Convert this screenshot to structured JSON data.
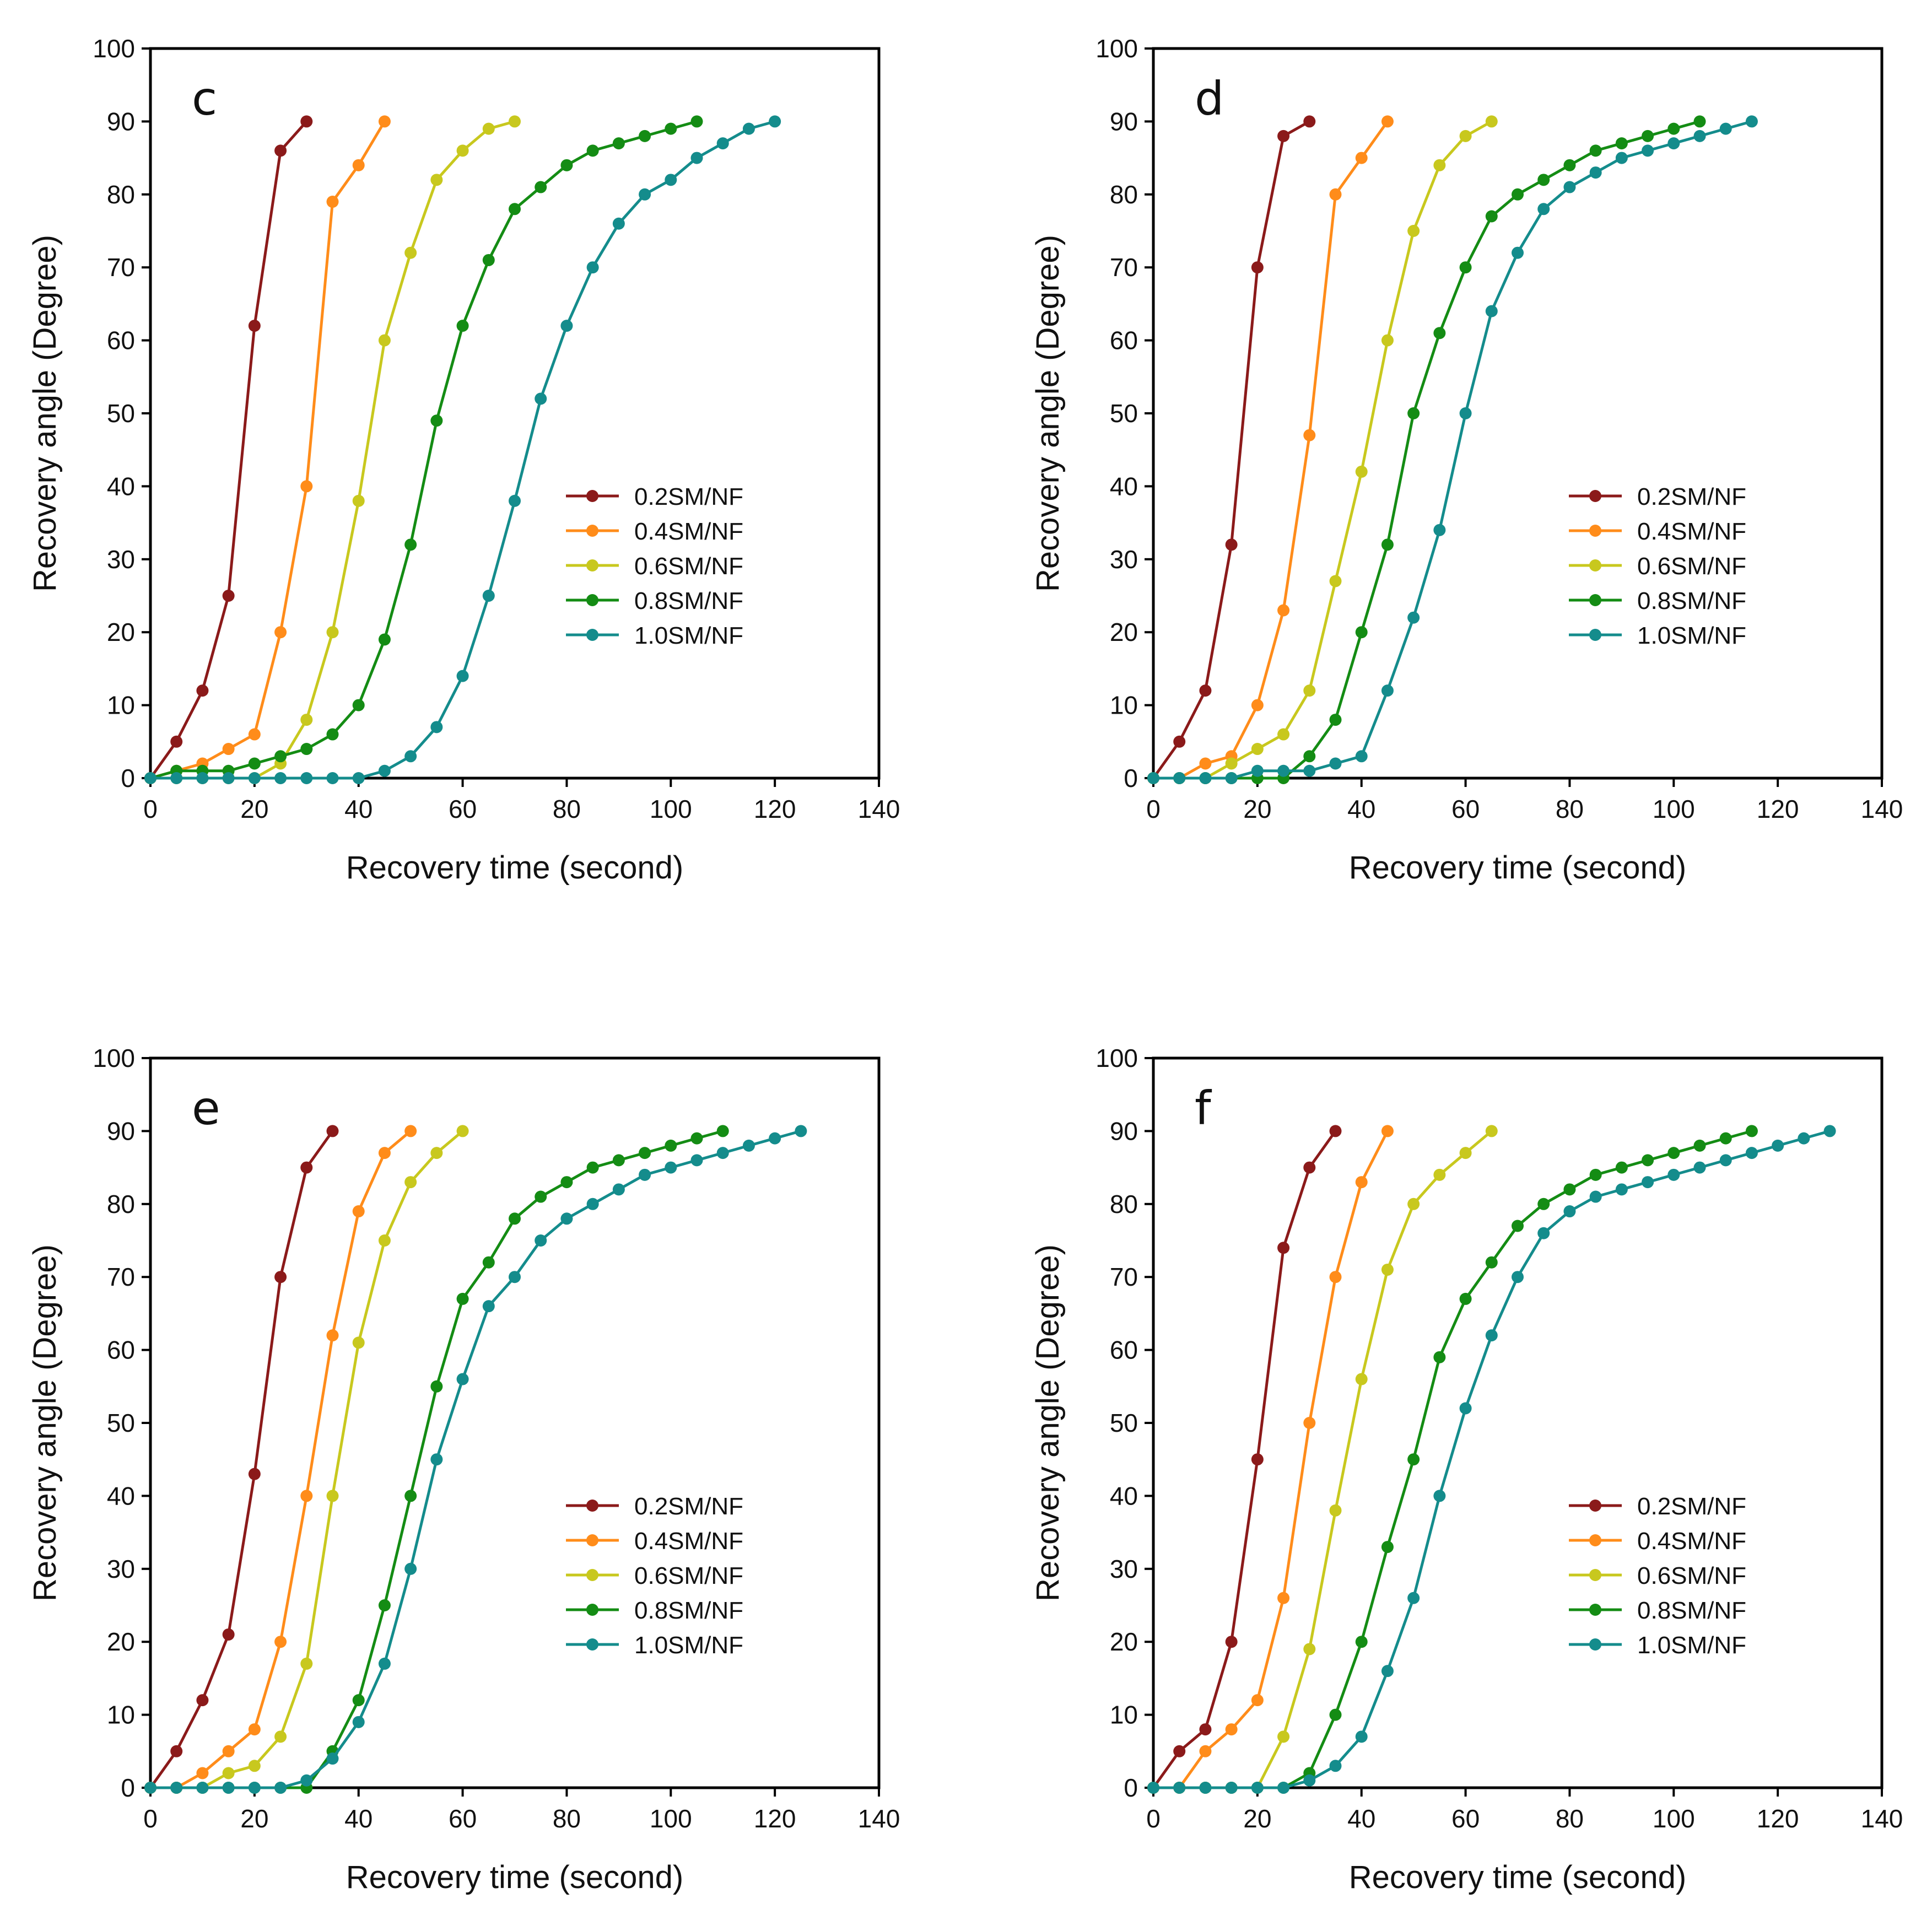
{
  "chart_data": [
    {
      "type": "line",
      "panel_label": "c",
      "xlabel": "Recovery time (second)",
      "ylabel": "Recovery angle (Degree)",
      "xlim": [
        0,
        140
      ],
      "ylim": [
        0,
        100
      ],
      "xticks": [
        0,
        20,
        40,
        60,
        80,
        100,
        120,
        140
      ],
      "yticks": [
        0,
        10,
        20,
        30,
        40,
        50,
        60,
        70,
        80,
        90,
        100
      ],
      "grid": false,
      "legend_position": "center-right",
      "series": [
        {
          "name": "0.2SM/NF",
          "color": "#8B1A1A",
          "x": [
            0,
            5,
            10,
            15,
            20,
            25,
            30
          ],
          "y": [
            0,
            5,
            12,
            25,
            62,
            86,
            90
          ]
        },
        {
          "name": "0.4SM/NF",
          "color": "#FF8C1A",
          "x": [
            0,
            5,
            10,
            15,
            20,
            25,
            30,
            35,
            40,
            45
          ],
          "y": [
            0,
            1,
            2,
            4,
            6,
            20,
            40,
            79,
            84,
            90
          ]
        },
        {
          "name": "0.6SM/NF",
          "color": "#C8C81E",
          "x": [
            0,
            5,
            10,
            15,
            20,
            25,
            30,
            35,
            40,
            45,
            50,
            55,
            60,
            65,
            70
          ],
          "y": [
            0,
            0,
            0,
            0,
            0,
            2,
            8,
            20,
            38,
            60,
            72,
            82,
            86,
            89,
            90
          ]
        },
        {
          "name": "0.8SM/NF",
          "color": "#148C14",
          "x": [
            0,
            5,
            10,
            15,
            20,
            25,
            30,
            35,
            40,
            45,
            50,
            55,
            60,
            65,
            70,
            75,
            80,
            85,
            90,
            95,
            100,
            105
          ],
          "y": [
            0,
            1,
            1,
            1,
            2,
            3,
            4,
            6,
            10,
            19,
            32,
            49,
            62,
            71,
            78,
            81,
            84,
            86,
            87,
            88,
            89,
            90
          ]
        },
        {
          "name": "1.0SM/NF",
          "color": "#148C8C",
          "x": [
            0,
            5,
            10,
            15,
            20,
            25,
            30,
            35,
            40,
            45,
            50,
            55,
            60,
            65,
            70,
            75,
            80,
            85,
            90,
            95,
            100,
            105,
            110,
            115,
            120
          ],
          "y": [
            0,
            0,
            0,
            0,
            0,
            0,
            0,
            0,
            0,
            1,
            3,
            7,
            14,
            25,
            38,
            52,
            62,
            70,
            76,
            80,
            82,
            85,
            87,
            89,
            90
          ]
        }
      ]
    },
    {
      "type": "line",
      "panel_label": "d",
      "xlabel": "Recovery time (second)",
      "ylabel": "Recovery angle (Degree)",
      "xlim": [
        0,
        140
      ],
      "ylim": [
        0,
        100
      ],
      "xticks": [
        0,
        20,
        40,
        60,
        80,
        100,
        120,
        140
      ],
      "yticks": [
        0,
        10,
        20,
        30,
        40,
        50,
        60,
        70,
        80,
        90,
        100
      ],
      "grid": false,
      "legend_position": "center-right",
      "series": [
        {
          "name": "0.2SM/NF",
          "color": "#8B1A1A",
          "x": [
            0,
            5,
            10,
            15,
            20,
            25,
            30
          ],
          "y": [
            0,
            5,
            12,
            32,
            70,
            88,
            90
          ]
        },
        {
          "name": "0.4SM/NF",
          "color": "#FF8C1A",
          "x": [
            0,
            5,
            10,
            15,
            20,
            25,
            30,
            35,
            40,
            45
          ],
          "y": [
            0,
            0,
            2,
            3,
            10,
            23,
            47,
            80,
            85,
            90
          ]
        },
        {
          "name": "0.6SM/NF",
          "color": "#C8C81E",
          "x": [
            0,
            5,
            10,
            15,
            20,
            25,
            30,
            35,
            40,
            45,
            50,
            55,
            60,
            65
          ],
          "y": [
            0,
            0,
            0,
            2,
            4,
            6,
            12,
            27,
            42,
            60,
            75,
            84,
            88,
            90
          ]
        },
        {
          "name": "0.8SM/NF",
          "color": "#148C14",
          "x": [
            0,
            5,
            10,
            15,
            20,
            25,
            30,
            35,
            40,
            45,
            50,
            55,
            60,
            65,
            70,
            75,
            80,
            85,
            90,
            95,
            100,
            105
          ],
          "y": [
            0,
            0,
            0,
            0,
            0,
            0,
            3,
            8,
            20,
            32,
            50,
            61,
            70,
            77,
            80,
            82,
            84,
            86,
            87,
            88,
            89,
            90
          ]
        },
        {
          "name": "1.0SM/NF",
          "color": "#148C8C",
          "x": [
            0,
            5,
            10,
            15,
            20,
            25,
            30,
            35,
            40,
            45,
            50,
            55,
            60,
            65,
            70,
            75,
            80,
            85,
            90,
            95,
            100,
            105,
            110,
            115
          ],
          "y": [
            0,
            0,
            0,
            0,
            1,
            1,
            1,
            2,
            3,
            12,
            22,
            34,
            50,
            64,
            72,
            78,
            81,
            83,
            85,
            86,
            87,
            88,
            89,
            90
          ]
        }
      ]
    },
    {
      "type": "line",
      "panel_label": "e",
      "xlabel": "Recovery time (second)",
      "ylabel": "Recovery angle (Degree)",
      "xlim": [
        0,
        140
      ],
      "ylim": [
        0,
        100
      ],
      "xticks": [
        0,
        20,
        40,
        60,
        80,
        100,
        120,
        140
      ],
      "yticks": [
        0,
        10,
        20,
        30,
        40,
        50,
        60,
        70,
        80,
        90,
        100
      ],
      "grid": false,
      "legend_position": "center-right",
      "series": [
        {
          "name": "0.2SM/NF",
          "color": "#8B1A1A",
          "x": [
            0,
            5,
            10,
            15,
            20,
            25,
            30,
            35
          ],
          "y": [
            0,
            5,
            12,
            21,
            43,
            70,
            85,
            90
          ]
        },
        {
          "name": "0.4SM/NF",
          "color": "#FF8C1A",
          "x": [
            0,
            5,
            10,
            15,
            20,
            25,
            30,
            35,
            40,
            45,
            50
          ],
          "y": [
            0,
            0,
            2,
            5,
            8,
            20,
            40,
            62,
            79,
            87,
            90
          ]
        },
        {
          "name": "0.6SM/NF",
          "color": "#C8C81E",
          "x": [
            0,
            5,
            10,
            15,
            20,
            25,
            30,
            35,
            40,
            45,
            50,
            55,
            60
          ],
          "y": [
            0,
            0,
            0,
            2,
            3,
            7,
            17,
            40,
            61,
            75,
            83,
            87,
            90
          ]
        },
        {
          "name": "0.8SM/NF",
          "color": "#148C14",
          "x": [
            0,
            5,
            10,
            15,
            20,
            25,
            30,
            35,
            40,
            45,
            50,
            55,
            60,
            65,
            70,
            75,
            80,
            85,
            90,
            95,
            100,
            105,
            110
          ],
          "y": [
            0,
            0,
            0,
            0,
            0,
            0,
            0,
            5,
            12,
            25,
            40,
            55,
            67,
            72,
            78,
            81,
            83,
            85,
            86,
            87,
            88,
            89,
            90
          ]
        },
        {
          "name": "1.0SM/NF",
          "color": "#148C8C",
          "x": [
            0,
            5,
            10,
            15,
            20,
            25,
            30,
            35,
            40,
            45,
            50,
            55,
            60,
            65,
            70,
            75,
            80,
            85,
            90,
            95,
            100,
            105,
            110,
            115,
            120,
            125
          ],
          "y": [
            0,
            0,
            0,
            0,
            0,
            0,
            1,
            4,
            9,
            17,
            30,
            45,
            56,
            66,
            70,
            75,
            78,
            80,
            82,
            84,
            85,
            86,
            87,
            88,
            89,
            90
          ]
        }
      ]
    },
    {
      "type": "line",
      "panel_label": "f",
      "xlabel": "Recovery time (second)",
      "ylabel": "Recovery angle (Degree)",
      "xlim": [
        0,
        140
      ],
      "ylim": [
        0,
        100
      ],
      "xticks": [
        0,
        20,
        40,
        60,
        80,
        100,
        120,
        140
      ],
      "yticks": [
        0,
        10,
        20,
        30,
        40,
        50,
        60,
        70,
        80,
        90,
        100
      ],
      "grid": false,
      "legend_position": "center-right",
      "series": [
        {
          "name": "0.2SM/NF",
          "color": "#8B1A1A",
          "x": [
            0,
            5,
            10,
            15,
            20,
            25,
            30,
            35
          ],
          "y": [
            0,
            5,
            8,
            20,
            45,
            74,
            85,
            90
          ]
        },
        {
          "name": "0.4SM/NF",
          "color": "#FF8C1A",
          "x": [
            0,
            5,
            10,
            15,
            20,
            25,
            30,
            35,
            40,
            45
          ],
          "y": [
            0,
            0,
            5,
            8,
            12,
            26,
            50,
            70,
            83,
            90
          ]
        },
        {
          "name": "0.6SM/NF",
          "color": "#C8C81E",
          "x": [
            0,
            5,
            10,
            15,
            20,
            25,
            30,
            35,
            40,
            45,
            50,
            55,
            60,
            65
          ],
          "y": [
            0,
            0,
            0,
            0,
            0,
            7,
            19,
            38,
            56,
            71,
            80,
            84,
            87,
            90
          ]
        },
        {
          "name": "0.8SM/NF",
          "color": "#148C14",
          "x": [
            0,
            5,
            10,
            15,
            20,
            25,
            30,
            35,
            40,
            45,
            50,
            55,
            60,
            65,
            70,
            75,
            80,
            85,
            90,
            95,
            100,
            105,
            110,
            115
          ],
          "y": [
            0,
            0,
            0,
            0,
            0,
            0,
            2,
            10,
            20,
            33,
            45,
            59,
            67,
            72,
            77,
            80,
            82,
            84,
            85,
            86,
            87,
            88,
            89,
            90
          ]
        },
        {
          "name": "1.0SM/NF",
          "color": "#148C8C",
          "x": [
            0,
            5,
            10,
            15,
            20,
            25,
            30,
            35,
            40,
            45,
            50,
            55,
            60,
            65,
            70,
            75,
            80,
            85,
            90,
            95,
            100,
            105,
            110,
            115,
            120,
            125,
            130
          ],
          "y": [
            0,
            0,
            0,
            0,
            0,
            0,
            1,
            3,
            7,
            16,
            26,
            40,
            52,
            62,
            70,
            76,
            79,
            81,
            82,
            83,
            84,
            85,
            86,
            87,
            88,
            89,
            90
          ]
        }
      ]
    }
  ]
}
